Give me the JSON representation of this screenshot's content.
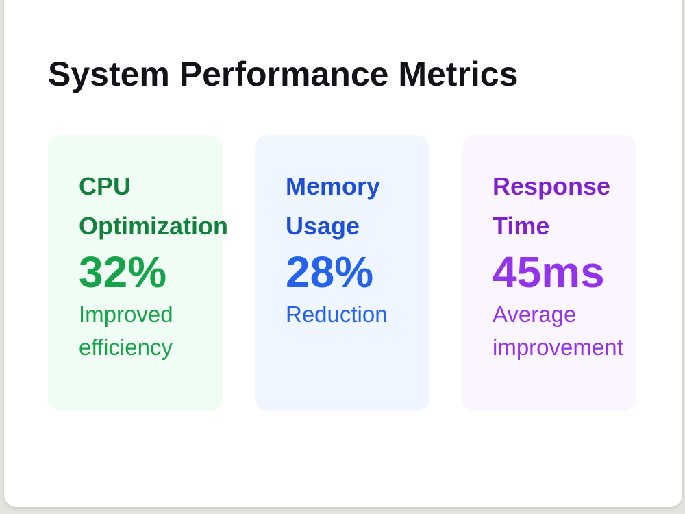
{
  "header": {
    "title": "System Performance Metrics"
  },
  "cards": [
    {
      "label": "CPU Optimization",
      "value": "32%",
      "description": "Improved efficiency"
    },
    {
      "label": "Memory Usage",
      "value": "28%",
      "description": "Reduction"
    },
    {
      "label": "Response Time",
      "value": "45ms",
      "description": "Average improvement"
    }
  ]
}
